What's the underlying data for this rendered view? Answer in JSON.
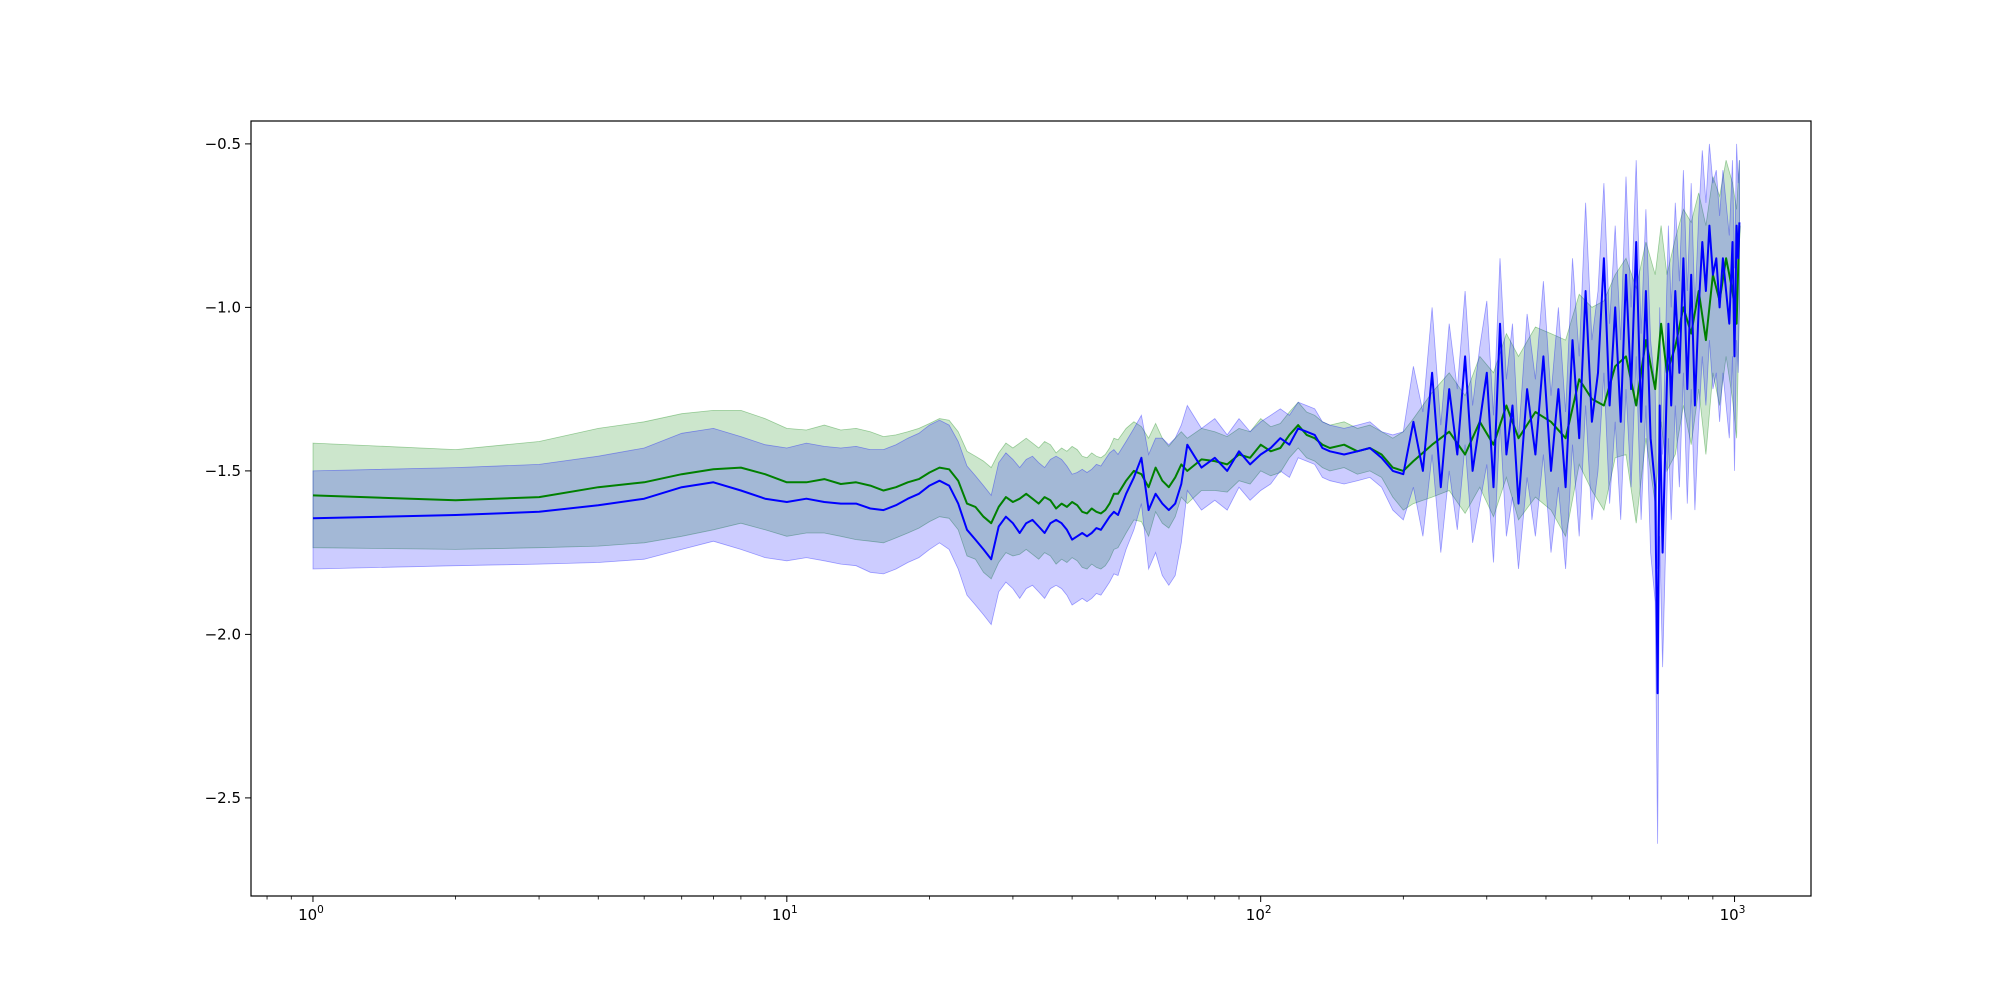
{
  "chart_data": {
    "type": "line",
    "title": "",
    "xlabel": "",
    "ylabel": "",
    "x_scale": "log",
    "xlim": [
      0.74,
      1450
    ],
    "ylim": [
      -2.8,
      -0.43
    ],
    "grid": false,
    "legend": "none",
    "x_ticks": [
      {
        "value": 1,
        "base": "10",
        "exp": "0"
      },
      {
        "value": 10,
        "base": "10",
        "exp": "1"
      },
      {
        "value": 100,
        "base": "10",
        "exp": "2"
      },
      {
        "value": 1000,
        "base": "10",
        "exp": "3"
      }
    ],
    "y_ticks": [
      {
        "value": -0.5,
        "label": "−0.5"
      },
      {
        "value": -1.0,
        "label": "−1.0"
      },
      {
        "value": -1.5,
        "label": "−1.5"
      },
      {
        "value": -2.0,
        "label": "−2.0"
      },
      {
        "value": -2.5,
        "label": "−2.5"
      }
    ],
    "series": [
      {
        "color": "#008000",
        "band_color": "#008000",
        "band_opacity": 0.2,
        "x": [
          1,
          2,
          3,
          4,
          5,
          6,
          7,
          8,
          9,
          10,
          11,
          12,
          13,
          14,
          15,
          16,
          17,
          18,
          19,
          20,
          21,
          22,
          23,
          24,
          25,
          26,
          27,
          28,
          29,
          30,
          31,
          32,
          33,
          34,
          35,
          36,
          37,
          38,
          39,
          40,
          41,
          42,
          43,
          44,
          45,
          46,
          47,
          48,
          49,
          50,
          52,
          54,
          56,
          58,
          60,
          62,
          64,
          66,
          68,
          70,
          75,
          80,
          85,
          90,
          95,
          100,
          105,
          110,
          115,
          120,
          125,
          130,
          135,
          140,
          150,
          160,
          170,
          180,
          190,
          200,
          210,
          230,
          250,
          270,
          290,
          310,
          330,
          350,
          380,
          410,
          440,
          470,
          500,
          530,
          560,
          590,
          620,
          650,
          680,
          700,
          720,
          750,
          780,
          810,
          840,
          870,
          900,
          930,
          960,
          990,
          1010,
          1024
        ],
        "y": [
          -1.575,
          -1.59,
          -1.58,
          -1.55,
          -1.535,
          -1.51,
          -1.495,
          -1.49,
          -1.51,
          -1.535,
          -1.535,
          -1.525,
          -1.54,
          -1.535,
          -1.545,
          -1.56,
          -1.55,
          -1.535,
          -1.525,
          -1.505,
          -1.49,
          -1.495,
          -1.53,
          -1.6,
          -1.61,
          -1.64,
          -1.66,
          -1.61,
          -1.58,
          -1.595,
          -1.585,
          -1.57,
          -1.585,
          -1.6,
          -1.58,
          -1.59,
          -1.615,
          -1.6,
          -1.61,
          -1.595,
          -1.605,
          -1.625,
          -1.63,
          -1.615,
          -1.625,
          -1.63,
          -1.62,
          -1.6,
          -1.57,
          -1.57,
          -1.53,
          -1.5,
          -1.51,
          -1.55,
          -1.49,
          -1.53,
          -1.55,
          -1.52,
          -1.48,
          -1.5,
          -1.465,
          -1.47,
          -1.48,
          -1.45,
          -1.46,
          -1.42,
          -1.44,
          -1.43,
          -1.39,
          -1.36,
          -1.39,
          -1.4,
          -1.42,
          -1.43,
          -1.42,
          -1.44,
          -1.43,
          -1.45,
          -1.49,
          -1.5,
          -1.47,
          -1.42,
          -1.38,
          -1.45,
          -1.35,
          -1.42,
          -1.3,
          -1.4,
          -1.32,
          -1.35,
          -1.4,
          -1.22,
          -1.28,
          -1.3,
          -1.18,
          -1.15,
          -1.3,
          -1.1,
          -1.25,
          -1.05,
          -1.2,
          -1.12,
          -1.0,
          -1.08,
          -0.95,
          -1.1,
          -0.9,
          -0.98,
          -0.85,
          -0.95,
          -1.05,
          -0.75
        ],
        "lower": [
          -1.735,
          -1.74,
          -1.735,
          -1.73,
          -1.72,
          -1.7,
          -1.68,
          -1.66,
          -1.68,
          -1.7,
          -1.69,
          -1.69,
          -1.7,
          -1.71,
          -1.715,
          -1.72,
          -1.705,
          -1.69,
          -1.675,
          -1.655,
          -1.64,
          -1.645,
          -1.68,
          -1.76,
          -1.77,
          -1.81,
          -1.83,
          -1.78,
          -1.75,
          -1.76,
          -1.755,
          -1.74,
          -1.755,
          -1.77,
          -1.75,
          -1.76,
          -1.785,
          -1.77,
          -1.78,
          -1.765,
          -1.775,
          -1.795,
          -1.8,
          -1.785,
          -1.795,
          -1.8,
          -1.79,
          -1.77,
          -1.74,
          -1.735,
          -1.69,
          -1.65,
          -1.655,
          -1.7,
          -1.625,
          -1.66,
          -1.675,
          -1.64,
          -1.58,
          -1.6,
          -1.56,
          -1.56,
          -1.565,
          -1.53,
          -1.54,
          -1.5,
          -1.515,
          -1.505,
          -1.46,
          -1.43,
          -1.46,
          -1.47,
          -1.49,
          -1.5,
          -1.49,
          -1.51,
          -1.5,
          -1.52,
          -1.58,
          -1.62,
          -1.6,
          -1.58,
          -1.56,
          -1.63,
          -1.55,
          -1.64,
          -1.52,
          -1.65,
          -1.58,
          -1.62,
          -1.7,
          -1.48,
          -1.56,
          -1.62,
          -1.46,
          -1.45,
          -1.66,
          -1.4,
          -1.6,
          -1.35,
          -1.5,
          -1.45,
          -1.3,
          -1.42,
          -1.25,
          -1.45,
          -1.2,
          -1.3,
          -1.15,
          -1.28,
          -1.4,
          -1.0
        ],
        "upper": [
          -1.415,
          -1.435,
          -1.41,
          -1.37,
          -1.35,
          -1.325,
          -1.315,
          -1.315,
          -1.34,
          -1.37,
          -1.375,
          -1.36,
          -1.375,
          -1.37,
          -1.38,
          -1.395,
          -1.39,
          -1.38,
          -1.37,
          -1.355,
          -1.34,
          -1.345,
          -1.38,
          -1.44,
          -1.455,
          -1.47,
          -1.49,
          -1.445,
          -1.415,
          -1.43,
          -1.415,
          -1.4,
          -1.415,
          -1.43,
          -1.41,
          -1.42,
          -1.445,
          -1.43,
          -1.44,
          -1.425,
          -1.435,
          -1.455,
          -1.46,
          -1.445,
          -1.455,
          -1.46,
          -1.45,
          -1.43,
          -1.4,
          -1.405,
          -1.37,
          -1.35,
          -1.365,
          -1.4,
          -1.355,
          -1.4,
          -1.425,
          -1.4,
          -1.38,
          -1.4,
          -1.37,
          -1.38,
          -1.395,
          -1.37,
          -1.38,
          -1.34,
          -1.365,
          -1.355,
          -1.32,
          -1.29,
          -1.32,
          -1.33,
          -1.35,
          -1.36,
          -1.35,
          -1.37,
          -1.36,
          -1.38,
          -1.4,
          -1.38,
          -1.34,
          -1.26,
          -1.2,
          -1.27,
          -1.15,
          -1.2,
          -1.08,
          -1.15,
          -1.06,
          -1.08,
          -1.1,
          -0.96,
          -1.0,
          -0.98,
          -0.9,
          -0.85,
          -0.94,
          -0.8,
          -0.9,
          -0.75,
          -0.9,
          -0.79,
          -0.7,
          -0.74,
          -0.65,
          -0.75,
          -0.6,
          -0.66,
          -0.55,
          -0.62,
          -0.7,
          -0.55
        ]
      },
      {
        "color": "#0000ff",
        "band_color": "#0000ff",
        "band_opacity": 0.2,
        "x": [
          1,
          2,
          3,
          4,
          5,
          6,
          7,
          8,
          9,
          10,
          11,
          12,
          13,
          14,
          15,
          16,
          17,
          18,
          19,
          20,
          21,
          22,
          23,
          24,
          25,
          26,
          27,
          28,
          29,
          30,
          31,
          32,
          33,
          34,
          35,
          36,
          37,
          38,
          39,
          40,
          41,
          42,
          43,
          44,
          45,
          46,
          47,
          48,
          49,
          50,
          52,
          54,
          56,
          58,
          60,
          62,
          64,
          66,
          68,
          70,
          75,
          80,
          85,
          90,
          95,
          100,
          105,
          110,
          115,
          120,
          125,
          130,
          135,
          140,
          150,
          160,
          170,
          180,
          190,
          200,
          210,
          220,
          230,
          240,
          250,
          260,
          270,
          280,
          290,
          300,
          310,
          320,
          330,
          340,
          350,
          365,
          380,
          395,
          410,
          425,
          440,
          455,
          470,
          485,
          500,
          515,
          530,
          545,
          560,
          575,
          590,
          605,
          620,
          635,
          650,
          665,
          680,
          688,
          695,
          705,
          715,
          725,
          735,
          750,
          765,
          780,
          795,
          810,
          825,
          840,
          855,
          870,
          885,
          900,
          915,
          930,
          945,
          960,
          975,
          990,
          1000,
          1010,
          1018,
          1024
        ],
        "y": [
          -1.645,
          -1.635,
          -1.625,
          -1.605,
          -1.585,
          -1.55,
          -1.535,
          -1.56,
          -1.585,
          -1.595,
          -1.585,
          -1.595,
          -1.6,
          -1.6,
          -1.615,
          -1.62,
          -1.605,
          -1.585,
          -1.57,
          -1.545,
          -1.53,
          -1.545,
          -1.6,
          -1.68,
          -1.71,
          -1.74,
          -1.77,
          -1.67,
          -1.64,
          -1.66,
          -1.69,
          -1.66,
          -1.65,
          -1.67,
          -1.69,
          -1.66,
          -1.65,
          -1.66,
          -1.68,
          -1.71,
          -1.7,
          -1.69,
          -1.7,
          -1.69,
          -1.675,
          -1.68,
          -1.66,
          -1.64,
          -1.625,
          -1.635,
          -1.57,
          -1.52,
          -1.46,
          -1.62,
          -1.57,
          -1.6,
          -1.62,
          -1.6,
          -1.54,
          -1.42,
          -1.49,
          -1.46,
          -1.5,
          -1.44,
          -1.48,
          -1.45,
          -1.43,
          -1.4,
          -1.42,
          -1.37,
          -1.38,
          -1.39,
          -1.43,
          -1.44,
          -1.45,
          -1.44,
          -1.43,
          -1.46,
          -1.5,
          -1.51,
          -1.35,
          -1.5,
          -1.2,
          -1.55,
          -1.25,
          -1.45,
          -1.15,
          -1.5,
          -1.35,
          -1.2,
          -1.55,
          -1.05,
          -1.45,
          -1.3,
          -1.6,
          -1.25,
          -1.45,
          -1.15,
          -1.5,
          -1.25,
          -1.55,
          -1.1,
          -1.4,
          -0.95,
          -1.35,
          -1.2,
          -0.85,
          -1.3,
          -1.0,
          -1.35,
          -0.9,
          -1.25,
          -0.8,
          -1.35,
          -0.95,
          -1.4,
          -1.55,
          -2.18,
          -1.3,
          -1.75,
          -1.4,
          -1.05,
          -1.3,
          -0.95,
          -1.2,
          -0.85,
          -1.25,
          -0.9,
          -1.3,
          -1.0,
          -0.8,
          -0.95,
          -0.75,
          -0.9,
          -0.85,
          -1.0,
          -0.85,
          -0.95,
          -1.05,
          -0.8,
          -1.15,
          -0.75,
          -0.85,
          -0.74
        ],
        "lower": [
          -1.8,
          -1.79,
          -1.785,
          -1.78,
          -1.77,
          -1.74,
          -1.715,
          -1.74,
          -1.765,
          -1.775,
          -1.765,
          -1.775,
          -1.785,
          -1.79,
          -1.81,
          -1.815,
          -1.8,
          -1.78,
          -1.765,
          -1.74,
          -1.72,
          -1.74,
          -1.8,
          -1.88,
          -1.91,
          -1.94,
          -1.97,
          -1.87,
          -1.84,
          -1.86,
          -1.89,
          -1.86,
          -1.85,
          -1.87,
          -1.89,
          -1.86,
          -1.85,
          -1.86,
          -1.88,
          -1.91,
          -1.9,
          -1.89,
          -1.9,
          -1.89,
          -1.875,
          -1.88,
          -1.86,
          -1.84,
          -1.815,
          -1.82,
          -1.74,
          -1.68,
          -1.6,
          -1.8,
          -1.75,
          -1.82,
          -1.85,
          -1.82,
          -1.72,
          -1.56,
          -1.62,
          -1.59,
          -1.62,
          -1.55,
          -1.59,
          -1.56,
          -1.54,
          -1.5,
          -1.52,
          -1.46,
          -1.47,
          -1.48,
          -1.52,
          -1.53,
          -1.54,
          -1.53,
          -1.52,
          -1.55,
          -1.62,
          -1.65,
          -1.55,
          -1.7,
          -1.45,
          -1.75,
          -1.5,
          -1.68,
          -1.42,
          -1.72,
          -1.6,
          -1.48,
          -1.78,
          -1.35,
          -1.7,
          -1.58,
          -1.8,
          -1.52,
          -1.7,
          -1.45,
          -1.75,
          -1.55,
          -1.8,
          -1.42,
          -1.7,
          -1.3,
          -1.65,
          -1.5,
          -1.2,
          -1.6,
          -1.35,
          -1.65,
          -1.25,
          -1.55,
          -1.15,
          -1.65,
          -1.3,
          -1.75,
          -1.9,
          -2.64,
          -1.7,
          -2.1,
          -1.75,
          -1.4,
          -1.65,
          -1.3,
          -1.55,
          -1.2,
          -1.6,
          -1.25,
          -1.62,
          -1.35,
          -1.15,
          -1.3,
          -1.1,
          -1.25,
          -1.2,
          -1.35,
          -1.2,
          -1.3,
          -1.4,
          -1.15,
          -1.5,
          -1.1,
          -1.2,
          -1.0
        ],
        "upper": [
          -1.5,
          -1.49,
          -1.48,
          -1.455,
          -1.43,
          -1.385,
          -1.37,
          -1.395,
          -1.42,
          -1.43,
          -1.415,
          -1.425,
          -1.43,
          -1.425,
          -1.435,
          -1.435,
          -1.42,
          -1.4,
          -1.385,
          -1.36,
          -1.345,
          -1.36,
          -1.41,
          -1.485,
          -1.515,
          -1.545,
          -1.575,
          -1.475,
          -1.445,
          -1.465,
          -1.49,
          -1.465,
          -1.455,
          -1.475,
          -1.49,
          -1.465,
          -1.455,
          -1.465,
          -1.485,
          -1.51,
          -1.505,
          -1.495,
          -1.505,
          -1.495,
          -1.48,
          -1.485,
          -1.465,
          -1.445,
          -1.435,
          -1.45,
          -1.41,
          -1.37,
          -1.33,
          -1.45,
          -1.4,
          -1.4,
          -1.42,
          -1.4,
          -1.36,
          -1.3,
          -1.37,
          -1.34,
          -1.39,
          -1.34,
          -1.38,
          -1.35,
          -1.33,
          -1.31,
          -1.33,
          -1.29,
          -1.3,
          -1.31,
          -1.35,
          -1.36,
          -1.37,
          -1.36,
          -1.35,
          -1.38,
          -1.39,
          -1.38,
          -1.18,
          -1.32,
          -1.0,
          -1.36,
          -1.05,
          -1.25,
          -0.95,
          -1.3,
          -1.12,
          -0.98,
          -1.33,
          -0.85,
          -1.22,
          -1.05,
          -1.4,
          -1.02,
          -1.22,
          -0.92,
          -1.27,
          -1.0,
          -1.32,
          -0.85,
          -1.15,
          -0.68,
          -1.1,
          -0.95,
          -0.62,
          -1.05,
          -0.75,
          -1.1,
          -0.6,
          -1.0,
          -0.55,
          -1.08,
          -0.7,
          -1.1,
          -1.25,
          -1.8,
          -1.0,
          -1.45,
          -1.1,
          -0.75,
          -1.0,
          -0.68,
          -0.92,
          -0.58,
          -0.95,
          -0.62,
          -1.0,
          -0.72,
          -0.52,
          -0.68,
          -0.5,
          -0.62,
          -0.58,
          -0.72,
          -0.58,
          -0.68,
          -0.78,
          -0.55,
          -0.88,
          -0.5,
          -0.62,
          -0.55
        ]
      }
    ]
  }
}
